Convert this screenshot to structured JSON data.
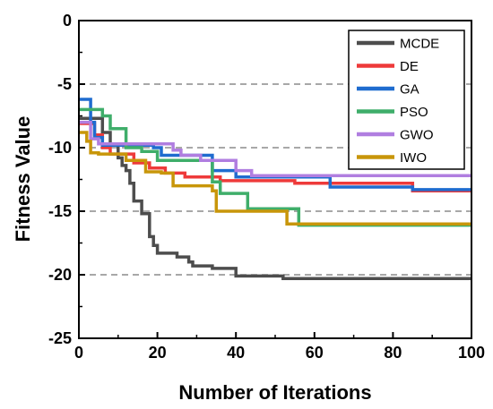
{
  "chart_data": {
    "type": "line",
    "title": "",
    "xlabel": "Number of Iterations",
    "ylabel": "Fitness Value",
    "xlim": [
      0,
      100
    ],
    "ylim": [
      -25,
      0
    ],
    "xticks": [
      0,
      20,
      40,
      60,
      80,
      100
    ],
    "yticks": [
      -25,
      -20,
      -15,
      -10,
      -5,
      0
    ],
    "xtick_labels": [
      "0",
      "20",
      "40",
      "60",
      "80",
      "100"
    ],
    "ytick_labels": [
      "-25",
      "-20",
      "-15",
      "-10",
      "-5",
      "0"
    ],
    "grid": "dashed horizontal at -5, -10, -15, -20",
    "legend_position": "top-right",
    "series": [
      {
        "name": "MCDE",
        "color": "#4d4d4d",
        "points": [
          [
            0,
            -7.7
          ],
          [
            6,
            -7.7
          ],
          [
            6,
            -8.8
          ],
          [
            8,
            -8.8
          ],
          [
            8,
            -9.8
          ],
          [
            10,
            -9.8
          ],
          [
            10,
            -10.8
          ],
          [
            11,
            -10.8
          ],
          [
            11,
            -11.4
          ],
          [
            12,
            -11.4
          ],
          [
            12,
            -11.8
          ],
          [
            13,
            -11.8
          ],
          [
            13,
            -12.8
          ],
          [
            14,
            -12.8
          ],
          [
            14,
            -14.2
          ],
          [
            16,
            -14.2
          ],
          [
            16,
            -15.2
          ],
          [
            18,
            -15.2
          ],
          [
            18,
            -17.0
          ],
          [
            19,
            -17.0
          ],
          [
            19,
            -17.7
          ],
          [
            20,
            -17.7
          ],
          [
            20,
            -18.3
          ],
          [
            25,
            -18.3
          ],
          [
            25,
            -18.6
          ],
          [
            28,
            -18.6
          ],
          [
            28,
            -19.0
          ],
          [
            29,
            -19.0
          ],
          [
            29,
            -19.3
          ],
          [
            34,
            -19.3
          ],
          [
            34,
            -19.5
          ],
          [
            40,
            -19.5
          ],
          [
            40,
            -20.1
          ],
          [
            52,
            -20.1
          ],
          [
            52,
            -20.3
          ],
          [
            100,
            -20.3
          ]
        ]
      },
      {
        "name": "DE",
        "color": "#ee3a3a",
        "points": [
          [
            0,
            -8.1
          ],
          [
            4,
            -8.1
          ],
          [
            4,
            -9.0
          ],
          [
            6,
            -9.0
          ],
          [
            6,
            -10.0
          ],
          [
            8,
            -10.0
          ],
          [
            8,
            -10.5
          ],
          [
            14,
            -10.5
          ],
          [
            14,
            -11.2
          ],
          [
            18,
            -11.2
          ],
          [
            18,
            -11.6
          ],
          [
            22,
            -11.6
          ],
          [
            22,
            -12.0
          ],
          [
            27,
            -12.0
          ],
          [
            27,
            -12.3
          ],
          [
            36,
            -12.3
          ],
          [
            36,
            -12.6
          ],
          [
            55,
            -12.6
          ],
          [
            55,
            -12.8
          ],
          [
            85,
            -12.8
          ],
          [
            85,
            -13.4
          ],
          [
            100,
            -13.4
          ]
        ]
      },
      {
        "name": "GA",
        "color": "#1f6ccf",
        "points": [
          [
            0,
            -6.2
          ],
          [
            3,
            -6.2
          ],
          [
            3,
            -8.0
          ],
          [
            4,
            -8.0
          ],
          [
            4,
            -9.2
          ],
          [
            6,
            -9.2
          ],
          [
            6,
            -9.8
          ],
          [
            19,
            -9.8
          ],
          [
            19,
            -10.0
          ],
          [
            21,
            -10.0
          ],
          [
            21,
            -10.6
          ],
          [
            34,
            -10.6
          ],
          [
            34,
            -11.8
          ],
          [
            40,
            -11.8
          ],
          [
            40,
            -12.3
          ],
          [
            64,
            -12.3
          ],
          [
            64,
            -13.1
          ],
          [
            85,
            -13.1
          ],
          [
            85,
            -13.3
          ],
          [
            100,
            -13.3
          ]
        ]
      },
      {
        "name": "PSO",
        "color": "#3fae6a",
        "points": [
          [
            0,
            -7.0
          ],
          [
            6,
            -7.0
          ],
          [
            6,
            -7.5
          ],
          [
            8,
            -7.5
          ],
          [
            8,
            -8.5
          ],
          [
            12,
            -8.5
          ],
          [
            12,
            -10.0
          ],
          [
            16,
            -10.0
          ],
          [
            16,
            -10.3
          ],
          [
            20,
            -10.3
          ],
          [
            20,
            -11.0
          ],
          [
            34,
            -11.0
          ],
          [
            34,
            -12.7
          ],
          [
            36,
            -12.7
          ],
          [
            36,
            -13.6
          ],
          [
            43,
            -13.6
          ],
          [
            43,
            -14.8
          ],
          [
            56,
            -14.8
          ],
          [
            56,
            -16.1
          ],
          [
            100,
            -16.1
          ]
        ]
      },
      {
        "name": "GWO",
        "color": "#b07ee0",
        "points": [
          [
            0,
            -8.0
          ],
          [
            3,
            -8.0
          ],
          [
            3,
            -9.3
          ],
          [
            5,
            -9.3
          ],
          [
            5,
            -9.7
          ],
          [
            24,
            -9.7
          ],
          [
            24,
            -10.2
          ],
          [
            26,
            -10.2
          ],
          [
            26,
            -10.6
          ],
          [
            31,
            -10.6
          ],
          [
            31,
            -11.0
          ],
          [
            40,
            -11.0
          ],
          [
            40,
            -11.8
          ],
          [
            44,
            -11.8
          ],
          [
            44,
            -12.2
          ],
          [
            100,
            -12.2
          ]
        ]
      },
      {
        "name": "IWO",
        "color": "#c8960a",
        "points": [
          [
            0,
            -8.8
          ],
          [
            2,
            -8.8
          ],
          [
            2,
            -9.5
          ],
          [
            3,
            -9.5
          ],
          [
            3,
            -10.4
          ],
          [
            5,
            -10.4
          ],
          [
            5,
            -10.5
          ],
          [
            12,
            -10.5
          ],
          [
            12,
            -11.0
          ],
          [
            17,
            -11.0
          ],
          [
            17,
            -11.9
          ],
          [
            21,
            -11.9
          ],
          [
            21,
            -12.0
          ],
          [
            24,
            -12.0
          ],
          [
            24,
            -13.0
          ],
          [
            34,
            -13.0
          ],
          [
            34,
            -13.4
          ],
          [
            35,
            -13.4
          ],
          [
            35,
            -15.0
          ],
          [
            53,
            -15.0
          ],
          [
            53,
            -16.0
          ],
          [
            100,
            -16.0
          ]
        ]
      }
    ]
  }
}
